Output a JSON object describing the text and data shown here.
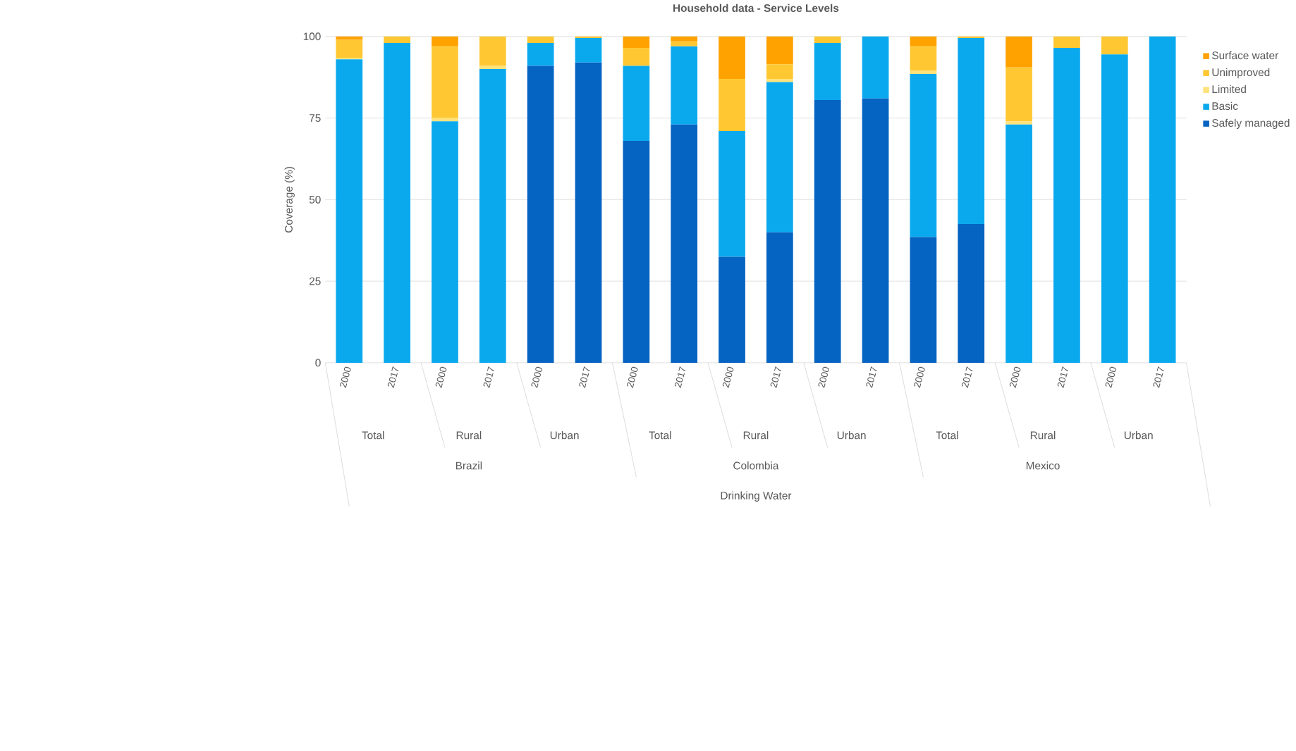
{
  "chart_data": {
    "type": "bar",
    "stacked": true,
    "title": "Household data - Service Levels",
    "ylabel": "Coverage (%)",
    "categories": [
      "2000",
      "2017",
      "2000",
      "2017",
      "2000",
      "2017",
      "2000",
      "2017",
      "2000",
      "2017",
      "2000",
      "2017",
      "2000",
      "2017",
      "2000",
      "2017",
      "2000",
      "2017"
    ],
    "annotations": [
      "Total",
      "Rural",
      "Urban",
      "Total",
      "Rural",
      "Urban",
      "Total",
      "Rural",
      "Urban",
      "Brazil",
      "Colombia",
      "Mexico",
      "Drinking Water"
    ],
    "ylim": [
      0,
      100
    ],
    "yticks": [
      0,
      25,
      50,
      75,
      100
    ],
    "grid": "y",
    "legend": "right",
    "series": [
      {
        "name": "Safely managed",
        "color": "#0563c1",
        "values": [
          0,
          0,
          0,
          0,
          91,
          92,
          68,
          73,
          32.5,
          40,
          80.5,
          81,
          38.5,
          42.5,
          0,
          0,
          0,
          0
        ]
      },
      {
        "name": "Basic",
        "color": "#0aa9ee",
        "values": [
          93,
          98,
          74,
          90,
          7,
          7.5,
          23,
          24,
          38.5,
          46,
          17.5,
          19,
          50,
          57,
          73,
          96.5,
          94.5,
          100
        ]
      },
      {
        "name": "Limited",
        "color": "#ffe27a",
        "values": [
          0.5,
          0,
          1,
          1,
          0,
          0,
          0,
          0,
          0,
          1,
          0,
          0,
          1,
          0,
          1,
          0,
          0,
          0
        ]
      },
      {
        "name": "Unimproved",
        "color": "#ffc833",
        "values": [
          5.5,
          2,
          22,
          9,
          2,
          0.5,
          5.5,
          1.5,
          16,
          4.5,
          2,
          0,
          7.5,
          0.5,
          16.5,
          3.5,
          5.5,
          0
        ]
      },
      {
        "name": "Surface water",
        "color": "#ffa200",
        "values": [
          1,
          0,
          3,
          0,
          0,
          0,
          3.5,
          1.5,
          13,
          8.5,
          0,
          0,
          3,
          0,
          9.5,
          0,
          0,
          0
        ]
      }
    ]
  }
}
